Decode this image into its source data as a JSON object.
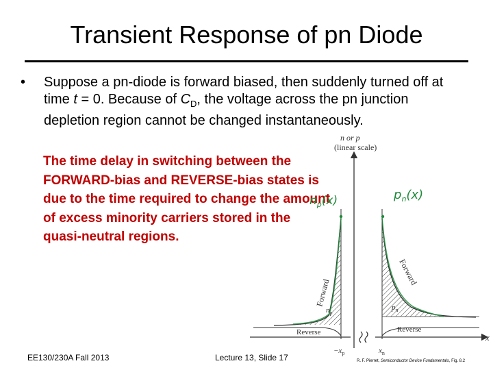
{
  "slide": {
    "title": "Transient Response of pn Diode",
    "bullet": {
      "symbol": "•",
      "before_t": "Suppose a pn-diode is forward biased, then suddenly turned off at time ",
      "t": "t",
      "after_t": " = 0.  Because of ",
      "c": "C",
      "c_sub": "D",
      "rest": ", the voltage across the pn junction depletion region cannot be changed instantaneously."
    },
    "highlight": "The time delay in switching between the FORWARD-bias and REVERSE-bias states is due to the time required to change the amount of excess minority carriers stored in the quasi-neutral regions.",
    "footer": {
      "course": "EE130/230A Fall 2013",
      "lecture": "Lecture 13, Slide 17",
      "credit_author": "R. F. Pierret, ",
      "credit_book": "Semiconductor Device Fundamentals",
      "credit_fig": ", Fig. 8.2"
    }
  },
  "figure": {
    "y_axis_label_1": "n or p",
    "y_axis_label_2": "(linear scale)",
    "x_axis_label": "x",
    "tick_left": "−x",
    "tick_left_sub": "p",
    "tick_right": "x",
    "tick_right_sub": "n",
    "forward_left": "Forward",
    "forward_right": "Forward",
    "reverse_left": "Reverse",
    "reverse_right": "Reverse",
    "np_label": "n",
    "np_sub": "p",
    "pn_label": "p",
    "pn_sub": "n",
    "handwritten_left": "n",
    "handwritten_left_sub": "p",
    "handwritten_left_arg": "(x)",
    "handwritten_right": "p",
    "handwritten_right_sub": "n",
    "handwritten_right_arg": "(x)",
    "ink_color": "#1f8a3a",
    "accent_red": "#c00000"
  }
}
